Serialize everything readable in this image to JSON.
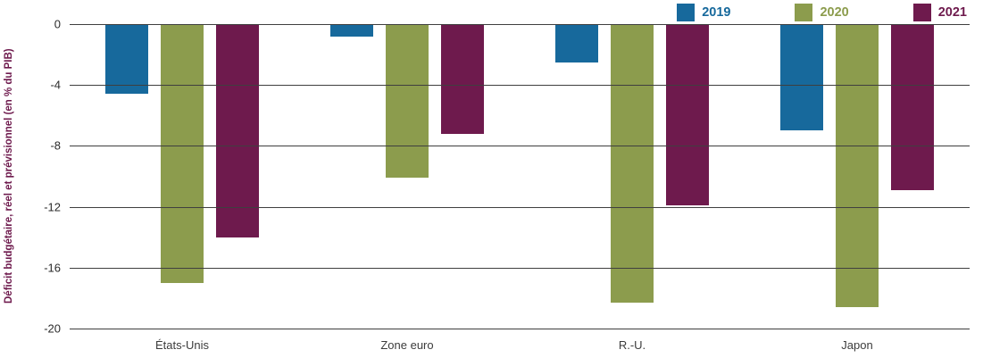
{
  "chart_data": {
    "type": "bar",
    "title": "",
    "xlabel": "",
    "ylabel": "Déficit budgétaire, réel et prévisionnel (en % du PIB)",
    "categories": [
      "États-Unis",
      "Zone euro",
      "R.-U.",
      "Japon"
    ],
    "series": [
      {
        "name": "2019",
        "color": "#17699c",
        "values": [
          -4.6,
          -0.8,
          -2.5,
          -7.0
        ]
      },
      {
        "name": "2020",
        "color": "#8c9c4d",
        "values": [
          -17.0,
          -10.1,
          -18.3,
          -18.6
        ]
      },
      {
        "name": "2021",
        "color": "#6e1a4d",
        "values": [
          -14.0,
          -7.2,
          -11.9,
          -10.9
        ]
      }
    ],
    "ylim": [
      -20,
      0
    ],
    "yticks": [
      0,
      -4,
      -8,
      -12,
      -16,
      -20
    ],
    "grid": true,
    "legend_position": "top-right"
  },
  "colors": {
    "series_2019": "#17699c",
    "series_2020": "#8c9c4d",
    "series_2021": "#6e1a4d",
    "gridline": "#3f3f3f",
    "axis_text": "#2b2b2b",
    "background": "#ffffff"
  }
}
